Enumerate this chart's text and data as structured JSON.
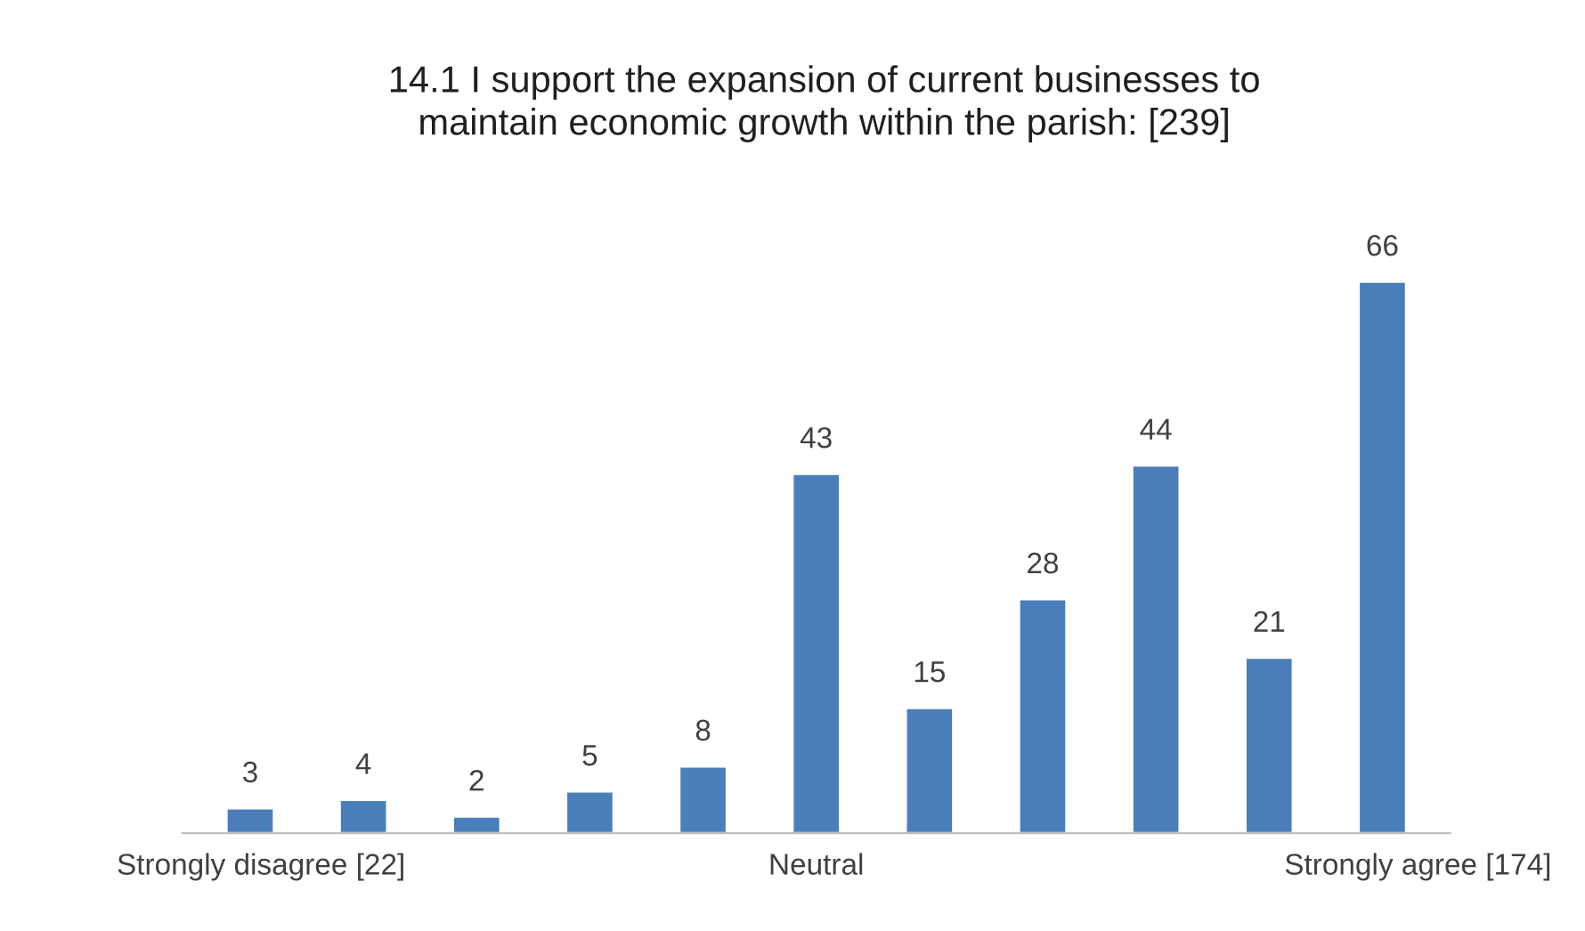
{
  "chart_data": {
    "type": "bar",
    "title": "14.1 I support the expansion of current businesses to\nmaintain economic growth within the parish: [239]",
    "categories": [
      "Strongly disagree [22]",
      null,
      null,
      null,
      null,
      "Neutral",
      null,
      null,
      null,
      null,
      "Strongly agree [174]"
    ],
    "values": [
      3,
      4,
      2,
      5,
      8,
      43,
      15,
      28,
      44,
      21,
      66
    ],
    "color": "#4a7ebb",
    "data_labels": true,
    "grid": false,
    "legend": false
  }
}
